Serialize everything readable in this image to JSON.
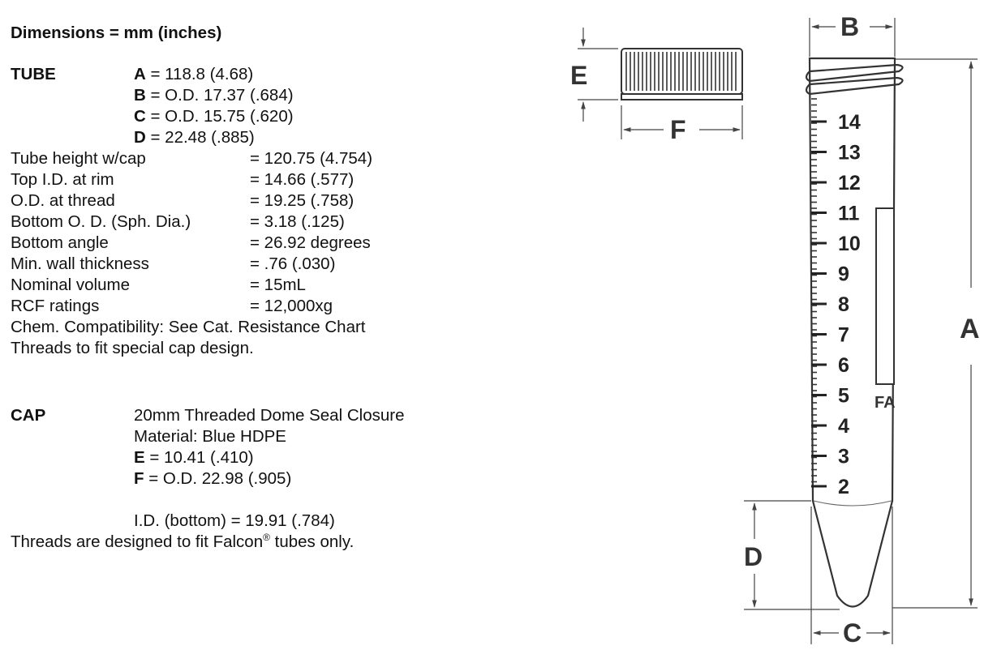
{
  "heading": "Dimensions = mm (inches)",
  "tube": {
    "label": "TUBE",
    "lines": [
      {
        "key": "A",
        "value": " = 118.8 (4.68)"
      },
      {
        "key": "B",
        "value": " = O.D. 17.37 (.684)"
      },
      {
        "key": "C",
        "value": " = O.D.  15.75 (.620)"
      },
      {
        "key": "D",
        "value": " = 22.48 (.885)"
      }
    ],
    "specs": [
      {
        "name": "Tube height w/cap",
        "value": "= 120.75 (4.754)"
      },
      {
        "name": "Top I.D. at rim",
        "value": "= 14.66 (.577)"
      },
      {
        "name": "O.D. at thread",
        "value": "= 19.25 (.758)"
      },
      {
        "name": "Bottom O. D. (Sph. Dia.)",
        "value": "= 3.18 (.125)"
      },
      {
        "name": "Bottom angle",
        "value": "= 26.92 degrees"
      },
      {
        "name": "Min. wall thickness",
        "value": "= .76 (.030)"
      },
      {
        "name": "Nominal volume",
        "value": "= 15mL"
      },
      {
        "name": "RCF ratings",
        "value": "= 12,000xg"
      }
    ],
    "notes": [
      "Chem. Compatibility: See Cat. Resistance Chart",
      "Threads to fit special cap design."
    ]
  },
  "cap": {
    "label": "CAP",
    "lines": [
      {
        "key": "",
        "value": "20mm Threaded Dome Seal Closure"
      },
      {
        "key": "",
        "value": "Material: Blue HDPE"
      },
      {
        "key": "E",
        "value": " = 10.41 (.410)"
      },
      {
        "key": "F",
        "value": " = O.D. 22.98 (.905)"
      }
    ],
    "id_bottom": "I.D. (bottom) = 19.91 (.784)",
    "threads_note_pre": "Threads are designed to fit Falcon",
    "threads_note_sup": "®",
    "threads_note_post": " tubes only."
  },
  "diagram": {
    "dim_labels": {
      "A": "A",
      "B": "B",
      "C": "C",
      "D": "D",
      "E": "E",
      "F": "F"
    },
    "scale_marks": [
      "14",
      "13",
      "12",
      "11",
      "10",
      "9",
      "8",
      "7",
      "6",
      "5",
      "4",
      "3",
      "2"
    ],
    "window_text": "FA"
  }
}
